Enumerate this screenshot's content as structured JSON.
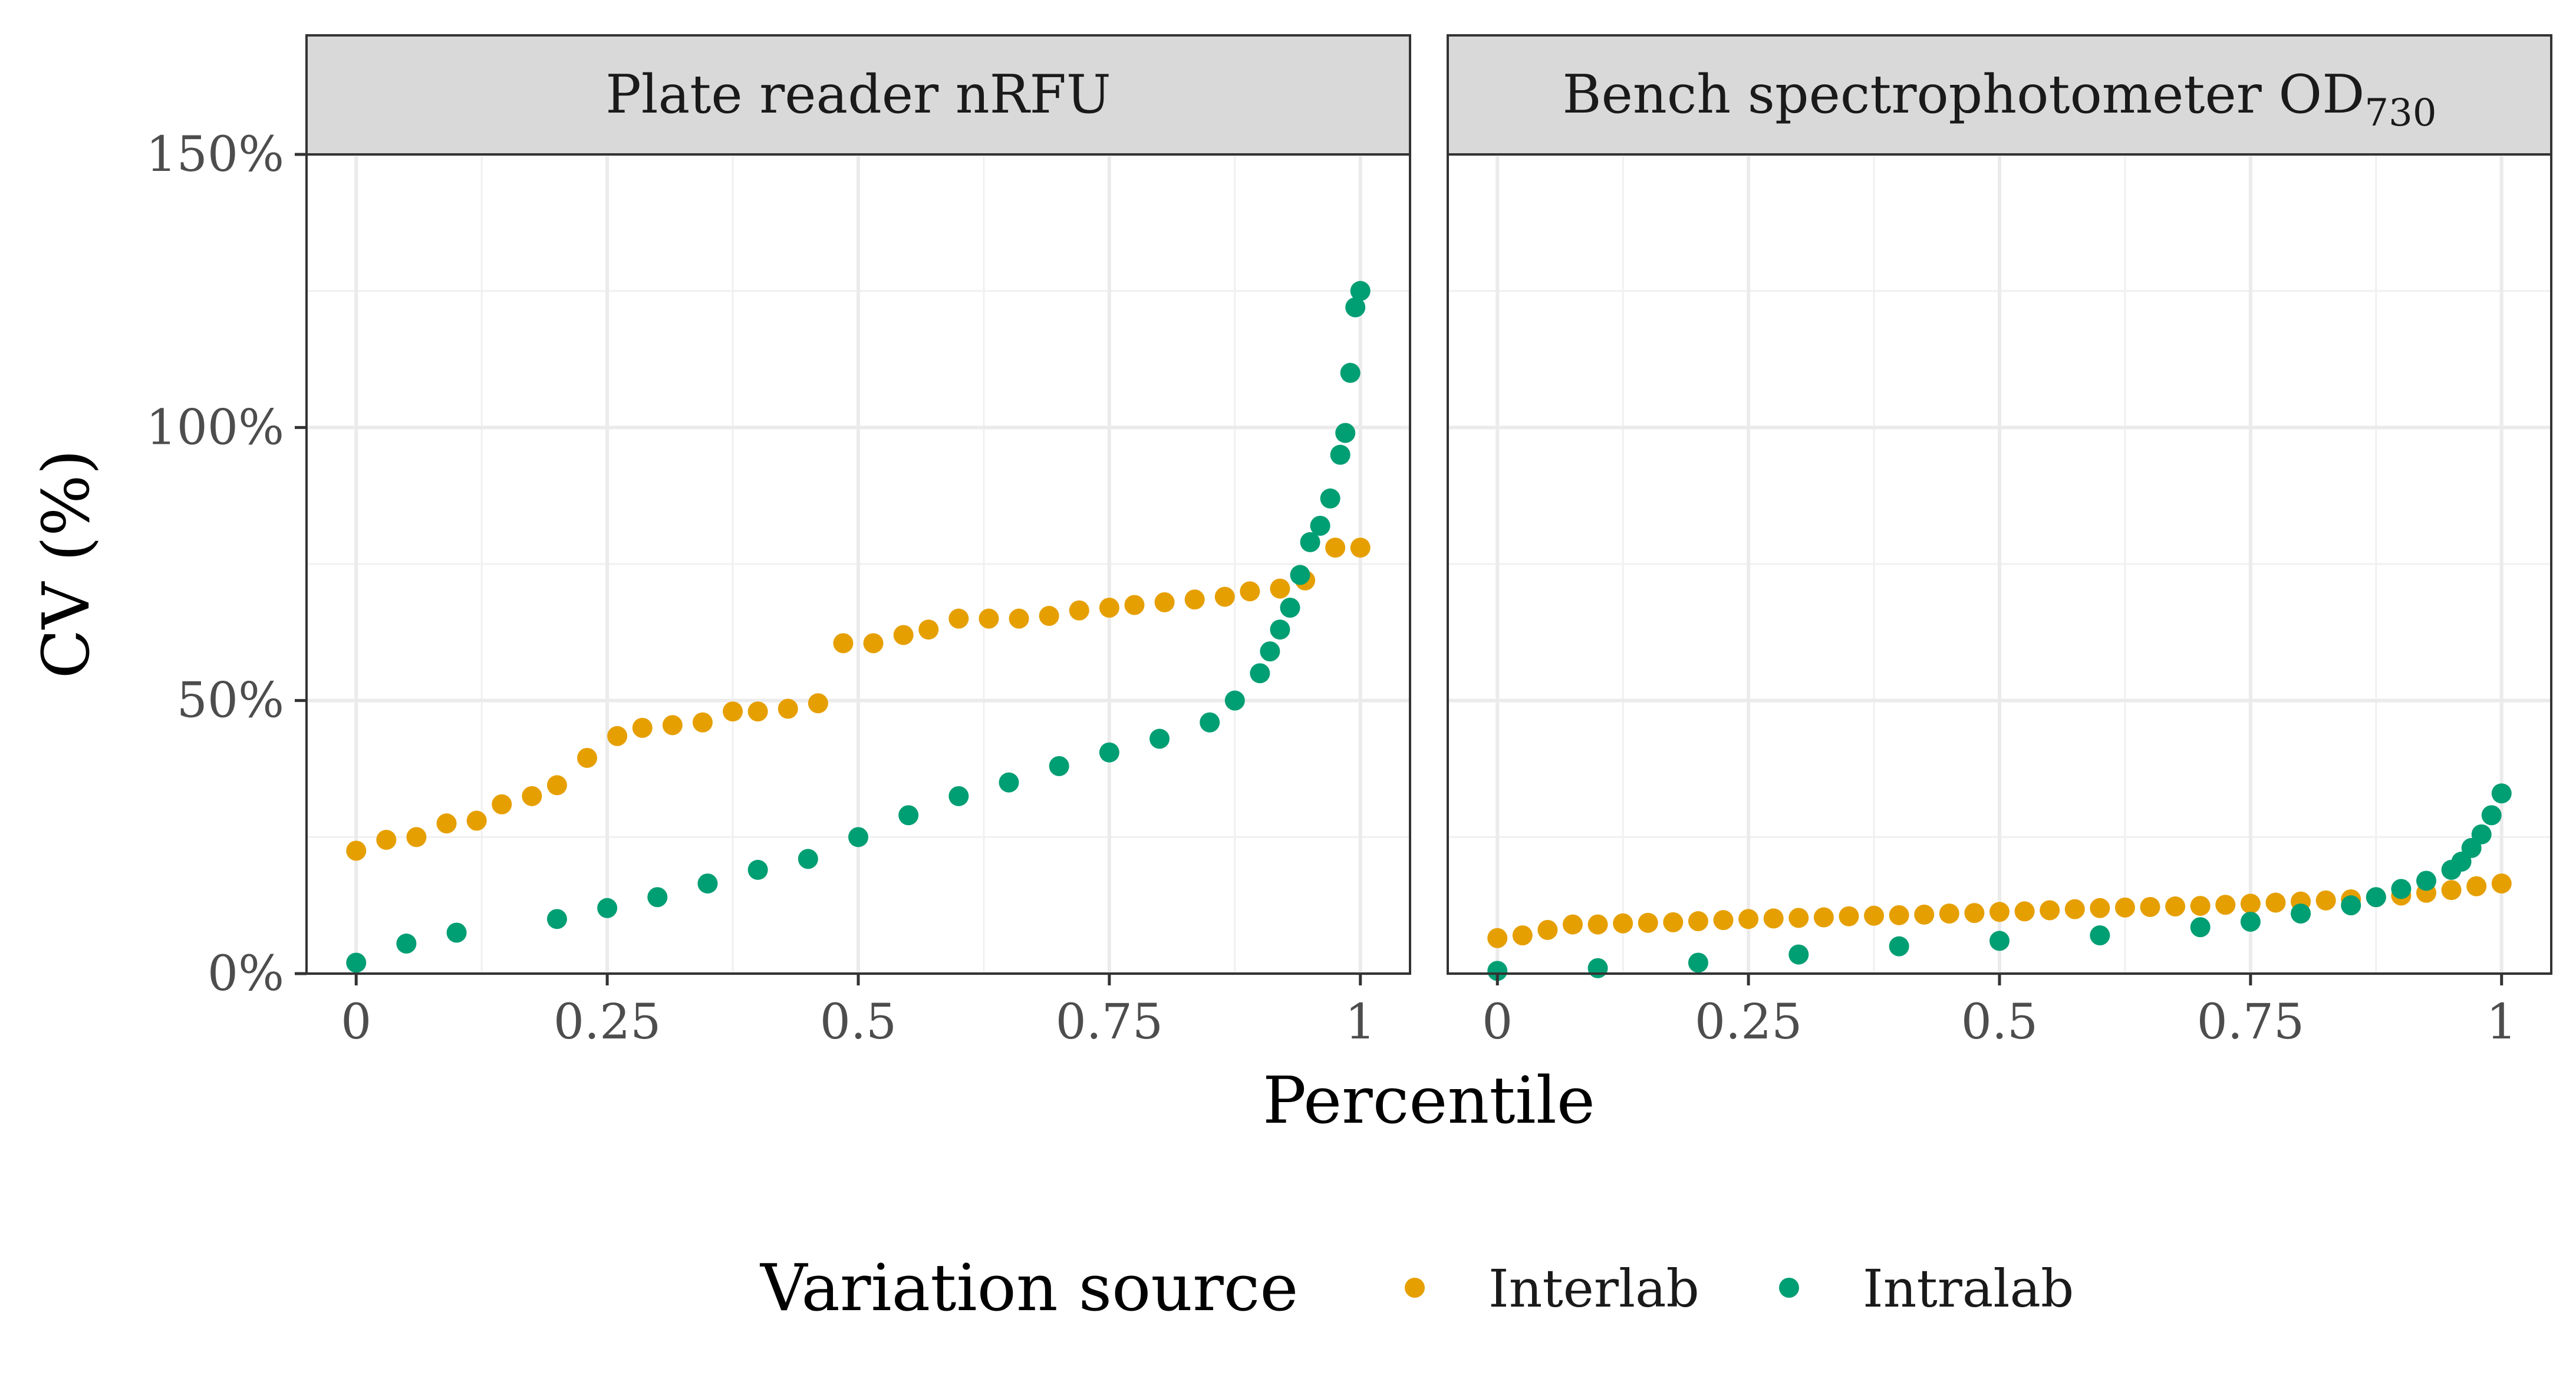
{
  "chart_data": {
    "type": "scatter",
    "xlabel": "Percentile",
    "ylabel": "CV (%)",
    "xlim": [
      0,
      1
    ],
    "ylim": [
      0,
      150
    ],
    "x_ticks": [
      "0",
      "0.25",
      "0.5",
      "0.75",
      "1"
    ],
    "y_ticks": [
      "0%",
      "50%",
      "100%",
      "150%"
    ],
    "grid": true,
    "legend": {
      "title": "Variation source",
      "placement": "bottom",
      "entries": [
        {
          "name": "Interlab",
          "color": "#E69F00"
        },
        {
          "name": "Intralab",
          "color": "#009E73"
        }
      ]
    },
    "panels": [
      {
        "strip_title": "Plate reader nRFU",
        "strip_subscript": "",
        "series": [
          {
            "name": "Interlab",
            "color": "#E69F00",
            "x": [
              0,
              0.03,
              0.06,
              0.09,
              0.12,
              0.145,
              0.175,
              0.2,
              0.23,
              0.26,
              0.285,
              0.315,
              0.345,
              0.375,
              0.4,
              0.43,
              0.46,
              0.485,
              0.515,
              0.545,
              0.57,
              0.6,
              0.63,
              0.66,
              0.69,
              0.72,
              0.75,
              0.775,
              0.805,
              0.835,
              0.865,
              0.89,
              0.92,
              0.945,
              0.975,
              1.0
            ],
            "y": [
              22.5,
              24.5,
              25,
              27.5,
              28,
              31,
              32.5,
              34.5,
              39.5,
              43.5,
              45,
              45.5,
              46,
              48,
              48,
              48.5,
              49.5,
              60.5,
              60.5,
              62,
              63,
              65,
              65,
              65,
              65.5,
              66.5,
              67,
              67.5,
              68,
              68.5,
              69,
              70,
              70.5,
              72,
              78,
              78
            ]
          },
          {
            "name": "Intralab",
            "color": "#009E73",
            "x": [
              0,
              0.05,
              0.1,
              0.2,
              0.25,
              0.3,
              0.35,
              0.4,
              0.45,
              0.5,
              0.55,
              0.6,
              0.65,
              0.7,
              0.75,
              0.8,
              0.85,
              0.875,
              0.9,
              0.91,
              0.92,
              0.93,
              0.94,
              0.95,
              0.96,
              0.97,
              0.98,
              0.985,
              0.99,
              0.995,
              1.0
            ],
            "y": [
              2,
              5.5,
              7.5,
              10,
              12,
              14,
              16.5,
              19,
              21,
              25,
              29,
              32.5,
              35,
              38,
              40.5,
              43,
              46,
              50,
              55,
              59,
              63,
              67,
              73,
              79,
              82,
              87,
              95,
              99,
              110,
              122,
              125
            ]
          }
        ]
      },
      {
        "strip_title": "Bench spectrophotometer OD",
        "strip_subscript": "730",
        "series": [
          {
            "name": "Interlab",
            "color": "#E69F00",
            "x": [
              0,
              0.025,
              0.05,
              0.075,
              0.1,
              0.125,
              0.15,
              0.175,
              0.2,
              0.225,
              0.25,
              0.275,
              0.3,
              0.325,
              0.35,
              0.375,
              0.4,
              0.425,
              0.45,
              0.475,
              0.5,
              0.525,
              0.55,
              0.575,
              0.6,
              0.625,
              0.65,
              0.675,
              0.7,
              0.725,
              0.75,
              0.775,
              0.8,
              0.825,
              0.85,
              0.875,
              0.9,
              0.925,
              0.95,
              0.975,
              1.0
            ],
            "y": [
              6.5,
              7,
              8,
              9,
              9,
              9.2,
              9.3,
              9.4,
              9.6,
              9.8,
              10,
              10.1,
              10.2,
              10.3,
              10.5,
              10.6,
              10.7,
              10.8,
              11,
              11.1,
              11.3,
              11.4,
              11.6,
              11.8,
              12,
              12.1,
              12.2,
              12.3,
              12.4,
              12.6,
              12.8,
              13,
              13.2,
              13.4,
              13.6,
              14,
              14.3,
              14.8,
              15.3,
              16,
              16.5
            ]
          },
          {
            "name": "Intralab",
            "color": "#009E73",
            "x": [
              0,
              0.1,
              0.2,
              0.3,
              0.4,
              0.5,
              0.6,
              0.7,
              0.75,
              0.8,
              0.85,
              0.875,
              0.9,
              0.925,
              0.95,
              0.96,
              0.97,
              0.98,
              0.99,
              1.0
            ],
            "y": [
              0.5,
              1,
              2,
              3.5,
              5,
              6,
              7,
              8.5,
              9.5,
              11,
              12.5,
              14,
              15.5,
              17,
              19,
              20.5,
              23,
              25.5,
              29,
              33
            ]
          }
        ]
      }
    ]
  }
}
